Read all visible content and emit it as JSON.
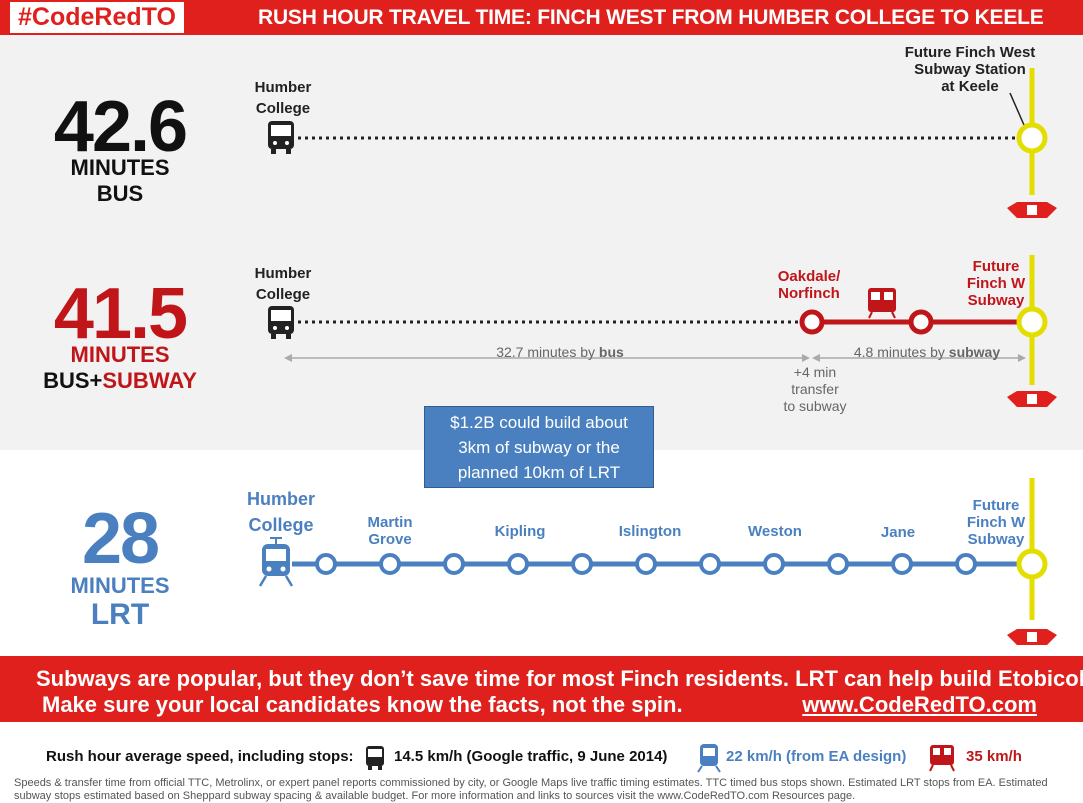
{
  "header": {
    "brand": "#CodeRedTO",
    "title": "RUSH HOUR TRAVEL TIME: FINCH WEST FROM HUMBER COLLEGE TO KEELE"
  },
  "bus": {
    "minutes": "42.6",
    "unit": "MINUTES",
    "mode": "BUS",
    "origin_line1": "Humber",
    "origin_line2": "College",
    "dest_line1": "Future Finch West",
    "dest_line2": "Subway Station",
    "dest_line3": "at Keele"
  },
  "bus_subway": {
    "minutes": "41.5",
    "unit": "MINUTES",
    "mode_a": "BUS+",
    "mode_b": "SUBWAY",
    "origin_line1": "Humber",
    "origin_line2": "College",
    "transfer_line1": "Oakdale/",
    "transfer_line2": "Norfinch",
    "dest_line1": "Future",
    "dest_line2": "Finch W",
    "dest_line3": "Subway",
    "bus_time_text": "32.7 minutes by ",
    "bus_time_mode": "bus",
    "subway_time_text": "4.8 minutes by ",
    "subway_time_mode": "subway",
    "transfer_note_1": "+4 min",
    "transfer_note_2": "transfer",
    "transfer_note_3": "to subway"
  },
  "callout": {
    "line1": "$1.2B could build about",
    "line2": "3km of subway or the",
    "line3": "planned 10km of LRT"
  },
  "lrt": {
    "minutes": "28",
    "unit": "MINUTES",
    "mode": "LRT",
    "origin_line1": "Humber",
    "origin_line2": "College",
    "stops": [
      {
        "l1": "Martin",
        "l2": "Grove"
      },
      {
        "l1": "Kipling",
        "l2": ""
      },
      {
        "l1": "Islington",
        "l2": ""
      },
      {
        "l1": "Weston",
        "l2": ""
      },
      {
        "l1": "Jane",
        "l2": ""
      }
    ],
    "dest_line1": "Future",
    "dest_line2": "Finch W",
    "dest_line3": "Subway"
  },
  "banner": {
    "line1": "Subways are popular, but they don’t save time for most Finch residents. LRT can help build Etobicoke.",
    "line2": "Make sure your local candidates know the facts, not the spin.",
    "url": "www.CodeRedTO.com"
  },
  "speeds": {
    "label": "Rush hour average speed, including stops:",
    "bus": "14.5 km/h (Google traffic, 9 June 2014)",
    "lrt": "22 km/h (from EA design)",
    "subway": "35 km/h"
  },
  "fine_print": "Speeds & transfer time from official TTC, Metrolinx, or expert panel reports commissioned by city, or Google Maps live traffic timing estimates. TTC timed bus stops shown. Estimated LRT stops from EA. Estimated subway stops estimated based on Sheppard subway spacing & available budget. For more information and links to sources visit the www.CodeRedTO.com Resources page.",
  "colors": {
    "red": "#e0201c",
    "dark_red": "#c0161a",
    "blue": "#4b80c0",
    "yellow": "#e3dd00",
    "grey_panel": "#f2f2f2"
  }
}
